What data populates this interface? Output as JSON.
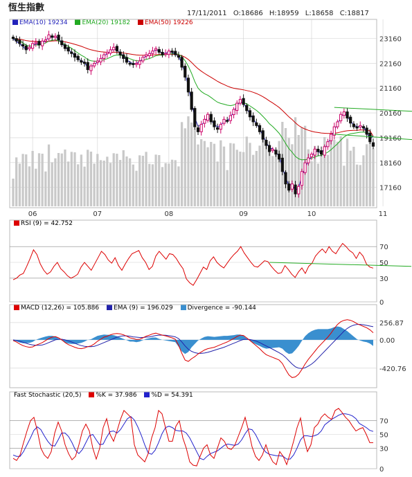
{
  "header": {
    "title": "恆生指數",
    "date": "17/11/2011",
    "open": "O:18686",
    "high": "H:18959",
    "low": "L:18658",
    "close": "C:18817"
  },
  "colors": {
    "up": "#cc0066",
    "down": "#111111",
    "ema10": "#2222bb",
    "ema20": "#22aa22",
    "ema50": "#cc0000",
    "rsi": "#dd0000",
    "trend": "#22aa22",
    "macd": "#dd0000",
    "macd_ema": "#2222aa",
    "divergence": "#3a8fcf",
    "k": "#dd0000",
    "d": "#2222cc",
    "volume": "#c9c9c9",
    "grid": "#d0d0d0",
    "frame": "#b8b8b8"
  },
  "chart_data": [
    {
      "type": "line",
      "panel": "price",
      "subtype": "candlestick with moving averages and volume",
      "legend": [
        {
          "label": "EMA(10)",
          "value": "19234"
        },
        {
          "label": "EMA(20)",
          "value": "19182"
        },
        {
          "label": "EMA(50)",
          "value": "19226"
        }
      ],
      "month_ticks": [
        "06",
        "07",
        "08",
        "09",
        "10",
        "11"
      ],
      "y_ticks": [
        "23160",
        "22160",
        "21160",
        "20160",
        "19160",
        "18160",
        "17160"
      ],
      "ylim": [
        16400,
        23700
      ],
      "closes": [
        23150,
        23050,
        22950,
        22850,
        22700,
        22800,
        22950,
        23000,
        22900,
        23050,
        23100,
        23300,
        23200,
        23250,
        23100,
        22900,
        22750,
        22650,
        22550,
        22400,
        22300,
        22200,
        22150,
        21900,
        22050,
        22150,
        22250,
        22350,
        22500,
        22600,
        22700,
        22800,
        22650,
        22500,
        22350,
        22200,
        22150,
        22100,
        22150,
        22250,
        22400,
        22500,
        22550,
        22650,
        22750,
        22600,
        22500,
        22550,
        22650,
        22600,
        22500,
        22400,
        22000,
        21600,
        21000,
        20300,
        19600,
        19400,
        19700,
        19900,
        20100,
        19800,
        19600,
        19500,
        19700,
        19900,
        19850,
        20050,
        20300,
        20550,
        20700,
        20500,
        20250,
        20000,
        19800,
        19650,
        19400,
        19100,
        18850,
        18600,
        18700,
        18500,
        18300,
        17800,
        17300,
        17050,
        17300,
        16900,
        17200,
        17800,
        18150,
        18350,
        18500,
        18700,
        18600,
        18500,
        18800,
        19000,
        19300,
        19600,
        19800,
        20100,
        20200,
        19950,
        19750,
        19600,
        19550,
        19650,
        19550,
        19300,
        19000,
        18817
      ],
      "ema10": [
        23150,
        23032,
        22937,
        22830,
        22710,
        22758,
        22860,
        22946,
        22906,
        22980,
        23050,
        23215,
        23205,
        23230,
        23140,
        22970,
        22810,
        22700,
        22590,
        22460,
        22350,
        22250,
        22190,
        21990,
        22010,
        22110,
        22200,
        22310,
        22440,
        22550,
        22650,
        22740,
        22690,
        22570,
        22430,
        22290,
        22200,
        22140,
        22150,
        22220,
        22350,
        22450,
        22520,
        22610,
        22700,
        22640,
        22560,
        22560,
        22620,
        22600,
        22530,
        22440,
        22140,
        21760,
        21220,
        20590,
        19970,
        19620,
        19660,
        19810,
        19980,
        19860,
        19700,
        19590,
        19660,
        19820,
        19840,
        19990,
        20210,
        20440,
        20610,
        20540,
        20340,
        20110,
        19910,
        19740,
        19510,
        19240,
        18990,
        18740,
        18720,
        18580,
        18410,
        17990,
        17540,
        17250,
        17280,
        17030,
        17150,
        17590,
        17970,
        18230,
        18410,
        18610,
        18600,
        18540,
        18720,
        18910,
        19170,
        19470,
        19700,
        19990,
        20140,
        20010,
        19830,
        19680,
        19600,
        19630,
        19580,
        19380,
        19100,
        19234
      ],
      "ema20": [
        23150,
        23120,
        23060,
        22980,
        22880,
        22850,
        22870,
        22900,
        22880,
        22920,
        22970,
        23050,
        23080,
        23100,
        23060,
        22990,
        22910,
        22840,
        22760,
        22660,
        22570,
        22480,
        22410,
        22300,
        22260,
        22240,
        22240,
        22260,
        22300,
        22340,
        22400,
        22460,
        22490,
        22480,
        22450,
        22400,
        22340,
        22290,
        22260,
        22260,
        22280,
        22310,
        22350,
        22400,
        22460,
        22480,
        22480,
        22500,
        22530,
        22540,
        22540,
        22520,
        22420,
        22260,
        22040,
        21750,
        21420,
        21160,
        21020,
        20930,
        20870,
        20780,
        20680,
        20590,
        20540,
        20510,
        20470,
        20450,
        20480,
        20530,
        20580,
        20570,
        20520,
        20440,
        20350,
        20260,
        20150,
        20020,
        19880,
        19720,
        19610,
        19480,
        19340,
        19150,
        18930,
        18720,
        18580,
        18410,
        18310,
        18270,
        18280,
        18290,
        18330,
        18390,
        18430,
        18450,
        18510,
        18580,
        18680,
        18800,
        18920,
        19060,
        19190,
        19270,
        19320,
        19340,
        19360,
        19380,
        19390,
        19370,
        19310,
        19182
      ],
      "ema50": [
        23150,
        23140,
        23120,
        23100,
        23070,
        23050,
        23040,
        23040,
        23030,
        23030,
        23030,
        23040,
        23050,
        23060,
        23060,
        23040,
        23020,
        22990,
        22960,
        22920,
        22880,
        22840,
        22790,
        22740,
        22700,
        22670,
        22640,
        22620,
        22610,
        22600,
        22600,
        22600,
        22600,
        22590,
        22570,
        22550,
        22530,
        22510,
        22490,
        22480,
        22480,
        22480,
        22480,
        22490,
        22500,
        22510,
        22510,
        22510,
        22520,
        22520,
        22510,
        22500,
        22460,
        22400,
        22310,
        22190,
        22060,
        21940,
        21840,
        21750,
        21670,
        21590,
        21510,
        21430,
        21360,
        21300,
        21240,
        21190,
        21150,
        21130,
        21110,
        21090,
        21060,
        21030,
        20990,
        20940,
        20880,
        20810,
        20730,
        20640,
        20560,
        20470,
        20380,
        20260,
        20130,
        20000,
        19890,
        19760,
        19650,
        19570,
        19510,
        19460,
        19420,
        19390,
        19370,
        19350,
        19340,
        19330,
        19330,
        19340,
        19360,
        19390,
        19420,
        19440,
        19450,
        19460,
        19460,
        19470,
        19470,
        19460,
        19440,
        19226
      ],
      "trendlines": [
        {
          "from": [
            99,
            20380
          ],
          "to": [
            137,
            20080
          ]
        },
        {
          "from": [
            99,
            19300
          ],
          "to": [
            137,
            18880
          ]
        }
      ]
    },
    {
      "type": "line",
      "panel": "rsi",
      "legend": [
        {
          "label": "RSI (9)",
          "value": "= 42.752"
        }
      ],
      "y_ticks": [
        "70",
        "50",
        "30",
        "0"
      ],
      "ylim": [
        0,
        100
      ],
      "values": [
        28,
        30,
        34,
        36,
        45,
        55,
        66,
        60,
        48,
        40,
        35,
        38,
        45,
        50,
        42,
        38,
        33,
        30,
        32,
        35,
        44,
        50,
        45,
        40,
        48,
        56,
        64,
        60,
        53,
        49,
        56,
        46,
        40,
        48,
        55,
        61,
        63,
        65,
        56,
        50,
        41,
        45,
        58,
        64,
        59,
        54,
        61,
        60,
        55,
        48,
        42,
        29,
        24,
        21,
        28,
        36,
        44,
        41,
        52,
        57,
        50,
        46,
        43,
        49,
        55,
        60,
        64,
        70,
        62,
        56,
        50,
        45,
        44,
        48,
        52,
        51,
        45,
        40,
        36,
        37,
        46,
        41,
        35,
        31,
        38,
        43,
        36,
        45,
        49,
        58,
        63,
        67,
        62,
        70,
        64,
        61,
        68,
        74,
        70,
        65,
        62,
        55,
        63,
        58,
        48,
        44,
        42.752
      ],
      "trendline": {
        "from": [
          79,
          50
        ],
        "to": [
          137,
          45
        ]
      }
    },
    {
      "type": "bar",
      "panel": "macd",
      "legend": [
        {
          "label": "MACD (12,26)",
          "value": "= 105.886"
        },
        {
          "label": "EMA (9)",
          "value": "= 196.029"
        },
        {
          "label": "Divergence",
          "value": "= -90.144"
        }
      ],
      "y_ticks": [
        "256.87",
        "0.00",
        "-420.76"
      ],
      "ylim": [
        -690,
        380
      ],
      "macd": [
        -10,
        -30,
        -60,
        -85,
        -100,
        -110,
        -105,
        -80,
        -60,
        -40,
        -10,
        20,
        40,
        50,
        30,
        0,
        -40,
        -70,
        -90,
        -110,
        -125,
        -130,
        -120,
        -100,
        -90,
        -60,
        -20,
        10,
        40,
        55,
        75,
        90,
        95,
        90,
        75,
        55,
        30,
        20,
        5,
        10,
        30,
        55,
        70,
        90,
        100,
        85,
        70,
        60,
        45,
        30,
        10,
        -80,
        -200,
        -300,
        -320,
        -280,
        -250,
        -210,
        -180,
        -150,
        -130,
        -120,
        -110,
        -90,
        -70,
        -50,
        -30,
        -5,
        20,
        50,
        70,
        65,
        30,
        -10,
        -50,
        -90,
        -130,
        -180,
        -220,
        -240,
        -260,
        -280,
        -300,
        -350,
        -440,
        -520,
        -560,
        -550,
        -510,
        -440,
        -360,
        -290,
        -230,
        -170,
        -110,
        -60,
        -10,
        40,
        100,
        170,
        230,
        270,
        290,
        300,
        290,
        270,
        240,
        220,
        200,
        180,
        150,
        105.886
      ],
      "ema9": [
        0,
        -10,
        -20,
        -35,
        -50,
        -65,
        -75,
        -80,
        -80,
        -75,
        -60,
        -40,
        -20,
        0,
        10,
        10,
        0,
        -15,
        -30,
        -50,
        -70,
        -85,
        -95,
        -100,
        -100,
        -95,
        -80,
        -60,
        -40,
        -20,
        0,
        20,
        40,
        55,
        60,
        60,
        55,
        45,
        40,
        35,
        35,
        40,
        45,
        55,
        65,
        70,
        70,
        68,
        62,
        55,
        45,
        20,
        -30,
        -90,
        -140,
        -170,
        -190,
        -200,
        -200,
        -195,
        -185,
        -170,
        -155,
        -140,
        -125,
        -110,
        -90,
        -70,
        -50,
        -30,
        -10,
        5,
        10,
        5,
        -5,
        -20,
        -40,
        -65,
        -90,
        -115,
        -140,
        -165,
        -190,
        -220,
        -260,
        -310,
        -360,
        -400,
        -420,
        -425,
        -415,
        -390,
        -360,
        -320,
        -270,
        -220,
        -170,
        -120,
        -70,
        -20,
        30,
        80,
        130,
        170,
        200,
        220,
        230,
        230,
        225,
        215,
        205,
        196.029
      ],
      "divergence": [
        -10,
        -20,
        -40,
        -50,
        -50,
        -45,
        -30,
        0,
        20,
        35,
        50,
        60,
        60,
        50,
        20,
        -10,
        -40,
        -55,
        -60,
        -60,
        -55,
        -45,
        -25,
        0,
        10,
        35,
        60,
        70,
        80,
        75,
        75,
        70,
        55,
        35,
        15,
        -5,
        -25,
        -25,
        -35,
        -25,
        -5,
        15,
        25,
        35,
        35,
        15,
        0,
        -8,
        -17,
        -25,
        -35,
        -100,
        -170,
        -210,
        -180,
        -110,
        -60,
        -10,
        20,
        45,
        55,
        50,
        45,
        50,
        55,
        60,
        60,
        65,
        70,
        80,
        80,
        60,
        20,
        -15,
        -45,
        -70,
        -90,
        -115,
        -130,
        -125,
        -120,
        -115,
        -110,
        -130,
        -180,
        -210,
        -200,
        -150,
        -90,
        -15,
        55,
        100,
        130,
        150,
        160,
        160,
        160,
        160,
        170,
        190,
        200,
        190,
        160,
        130,
        90,
        50,
        10,
        -10,
        -25,
        -35,
        -55,
        -90.144
      ]
    },
    {
      "type": "line",
      "panel": "stochastic",
      "legend": [
        {
          "label": "Fast Stochastic (20,5)",
          "value": ""
        },
        {
          "label": "%K",
          "value": "= 37.986"
        },
        {
          "label": "%D",
          "value": "= 54.391"
        }
      ],
      "y_ticks": [
        "70",
        "50",
        "30",
        "0"
      ],
      "ylim": [
        0,
        100
      ],
      "k": [
        15,
        12,
        20,
        38,
        55,
        70,
        75,
        55,
        30,
        20,
        15,
        25,
        52,
        68,
        55,
        35,
        22,
        13,
        18,
        35,
        55,
        65,
        55,
        30,
        14,
        30,
        60,
        73,
        50,
        40,
        55,
        72,
        85,
        80,
        75,
        35,
        20,
        15,
        10,
        22,
        45,
        60,
        85,
        80,
        60,
        40,
        40,
        62,
        70,
        45,
        30,
        10,
        5,
        4,
        18,
        30,
        35,
        20,
        15,
        30,
        45,
        40,
        30,
        28,
        34,
        47,
        60,
        75,
        55,
        32,
        18,
        12,
        20,
        35,
        20,
        10,
        6,
        25,
        18,
        6,
        22,
        40,
        60,
        74,
        44,
        25,
        35,
        60,
        65,
        75,
        80,
        75,
        72,
        85,
        88,
        82,
        75,
        70,
        62,
        55,
        58,
        60,
        50,
        38,
        37.986
      ],
      "d": [
        20,
        18,
        18,
        25,
        35,
        45,
        56,
        61,
        57,
        48,
        40,
        34,
        33,
        42,
        52,
        52,
        47,
        38,
        27,
        22,
        28,
        38,
        48,
        50,
        42,
        35,
        36,
        46,
        54,
        55,
        52,
        57,
        65,
        73,
        76,
        71,
        61,
        49,
        35,
        23,
        21,
        27,
        38,
        51,
        60,
        62,
        60,
        56,
        55,
        55,
        52,
        45,
        35,
        25,
        15,
        13,
        18,
        22,
        24,
        26,
        30,
        34,
        36,
        35,
        34,
        36,
        42,
        51,
        58,
        57,
        50,
        40,
        30,
        24,
        21,
        20,
        19,
        19,
        18,
        14,
        14,
        20,
        30,
        42,
        48,
        48,
        47,
        48,
        50,
        55,
        64,
        68,
        72,
        75,
        78,
        80,
        80,
        79,
        77,
        73,
        66,
        63,
        60,
        56,
        54.391
      ]
    }
  ]
}
